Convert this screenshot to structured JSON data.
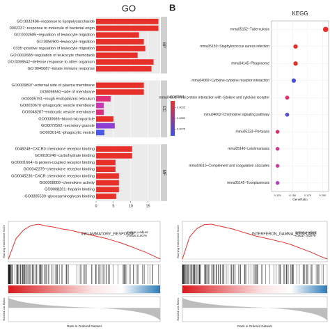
{
  "panel_label": "B",
  "chart_data": [
    {
      "type": "bar",
      "title": "GO",
      "groups": [
        {
          "name": "BP",
          "categories": [
            "GO:0032496~response to lipopolysaccharide",
            "0002237~response to molecule of bacterial origin",
            "GO:0002685~regulation of leukocyte migration",
            "GO:0050900~leukocyte migration",
            "0335~positive regulation of leukocyte migration",
            "GO:0002688~regulation of leukocyte chemotaxis",
            "GO:0098542~defense response to other organism",
            "GO:0045087~innate immune response"
          ],
          "values": [
            18,
            18,
            12.4,
            13.8,
            14.2,
            12,
            16.6,
            16
          ],
          "colors": [
            "#e8302a",
            "#e8302a",
            "#e8302a",
            "#e8302a",
            "#e8302a",
            "#e8302a",
            "#e8302a",
            "#e8302a"
          ]
        },
        {
          "name": "CC",
          "categories": [
            "GO0009897~external side of plasma membrane",
            "GO0098552~side of membrane",
            "GO0005791~rough endoplasmic reticulum",
            "GO0030670~phagocytic vesicle membrane",
            "GO0048287~endocytic vesicle membrane",
            "GO0030666~blood microparticle",
            "GO0072562~secretory granule",
            "GO0030141~phagocytic vesicle"
          ],
          "values": [
            13.8,
            13.8,
            4.2,
            2.2,
            2.2,
            5,
            5.4,
            2.4
          ],
          "colors": [
            "#e8302a",
            "#e8302a",
            "#e0307a",
            "#c838b0",
            "#d8327e",
            "#e8302a",
            "#8c3fd0",
            "#4b5ae6"
          ]
        },
        {
          "name": "MF",
          "categories": [
            "0048248~CXCR3 chemokine receptor binding",
            "GO0030246~carbohydrate binding",
            "GO0001664~G protein-coupled receptor binding",
            "GO0042379~chemokine receptor binding",
            "GO0045236~CXCR chemokine receptor binding",
            "GO0008009~chemokine activity",
            "GO0008201~heparin binding",
            "GO0005539~glycosaminoglycan binding"
          ],
          "values": [
            10.4,
            10.4,
            5.6,
            5.6,
            6.6,
            6.6,
            6.6,
            5.8
          ],
          "colors": [
            "#e8302a",
            "#e8302a",
            "#e8302a",
            "#e8302a",
            "#e8302a",
            "#e8302a",
            "#e8302a",
            "#e8302a"
          ]
        }
      ],
      "xlim": [
        0,
        18.5
      ],
      "xticks": [
        0,
        5,
        10,
        15
      ],
      "legend": {
        "title": "p.adjust",
        "colors": [
          "#e8302a",
          "#3b4fe6"
        ],
        "ticks": [
          {
            "value": 0.0025,
            "label": "0.0025"
          },
          {
            "value": 0.005,
            "label": "0.0050"
          },
          {
            "value": 0.0075,
            "label": "0.0075"
          }
        ],
        "lim": [
          0.001,
          0.009
        ]
      }
    },
    {
      "type": "dot",
      "title": "KEGG",
      "categories": [
        "mmu05152~Tuberculosis",
        "mmu05150~Staphylococcus aureus infection",
        "mmu04145~Phagosome",
        "mmu04060~Cytokine-cytokine receptor interaction",
        "mmu04061~Viral protein interaction with cytokine and cytokine receptor",
        "mmu04062~Chemokine signaling pathway",
        "mmu05133~Pertussis",
        "mmu05140~Leishmaniasis",
        "mmu04610~Complement and coagulation cascades",
        "mmu05145~Toxoplasmosis"
      ],
      "values": [
        0.205,
        0.155,
        0.155,
        0.152,
        0.141,
        0.141,
        0.125,
        0.125,
        0.125,
        0.125
      ],
      "sizes": [
        12,
        8,
        8,
        8,
        7,
        7,
        6,
        6,
        6,
        6
      ],
      "colors": [
        "#e8302a",
        "#e0302e",
        "#e0302e",
        "#4b4fd8",
        "#e0306a",
        "#5a50d0",
        "#d8306e",
        "#c83890",
        "#c840a0",
        "#b040b8"
      ],
      "xlim": [
        0.115,
        0.21
      ],
      "xticks": [
        0.125,
        {
          "value": 0.15,
          "label": "0.150"
        },
        0.175,
        {
          "value": 0.2,
          "label": "0.200"
        }
      ],
      "xlabel": "GeneRatio"
    },
    {
      "type": "line",
      "annotation": "INFLAMMATORY_RESPONSE",
      "stats_header": "pvalue p.adjust",
      "stats": "0.0018 0.0079",
      "ylabel": "Running Enrichment Score",
      "ylabel2": "Ranked List Metric",
      "xlabel": "Rank in Ordered Dataset",
      "color": "#e8302a",
      "values": [
        0,
        0.35,
        0.5,
        0.58,
        0.6,
        0.57,
        0.55,
        0.52,
        0.5,
        0.47,
        0.44,
        0.41,
        0.38,
        0.35,
        0.31,
        0.27,
        0.22,
        0.17,
        0.12,
        0.06,
        0
      ],
      "ylim": [
        -0.05,
        0.65
      ]
    },
    {
      "type": "line",
      "annotation": "INTERFERON_GAMMA_RESPONSE",
      "stats_header": "pvalue p.adjust",
      "stats": "0.0017 0.0079",
      "ylabel": "Running Enrichment Score",
      "ylabel2": "Ranked List Metric",
      "xlabel": "Rank in Ordered Dataset",
      "color": "#e8302a",
      "values": [
        0,
        0.4,
        0.55,
        0.62,
        0.63,
        0.6,
        0.57,
        0.54,
        0.5,
        0.46,
        0.42,
        0.39,
        0.36,
        0.33,
        0.3,
        0.26,
        0.21,
        0.16,
        0.11,
        0.05,
        0
      ],
      "ylim": [
        -0.05,
        0.68
      ]
    }
  ]
}
